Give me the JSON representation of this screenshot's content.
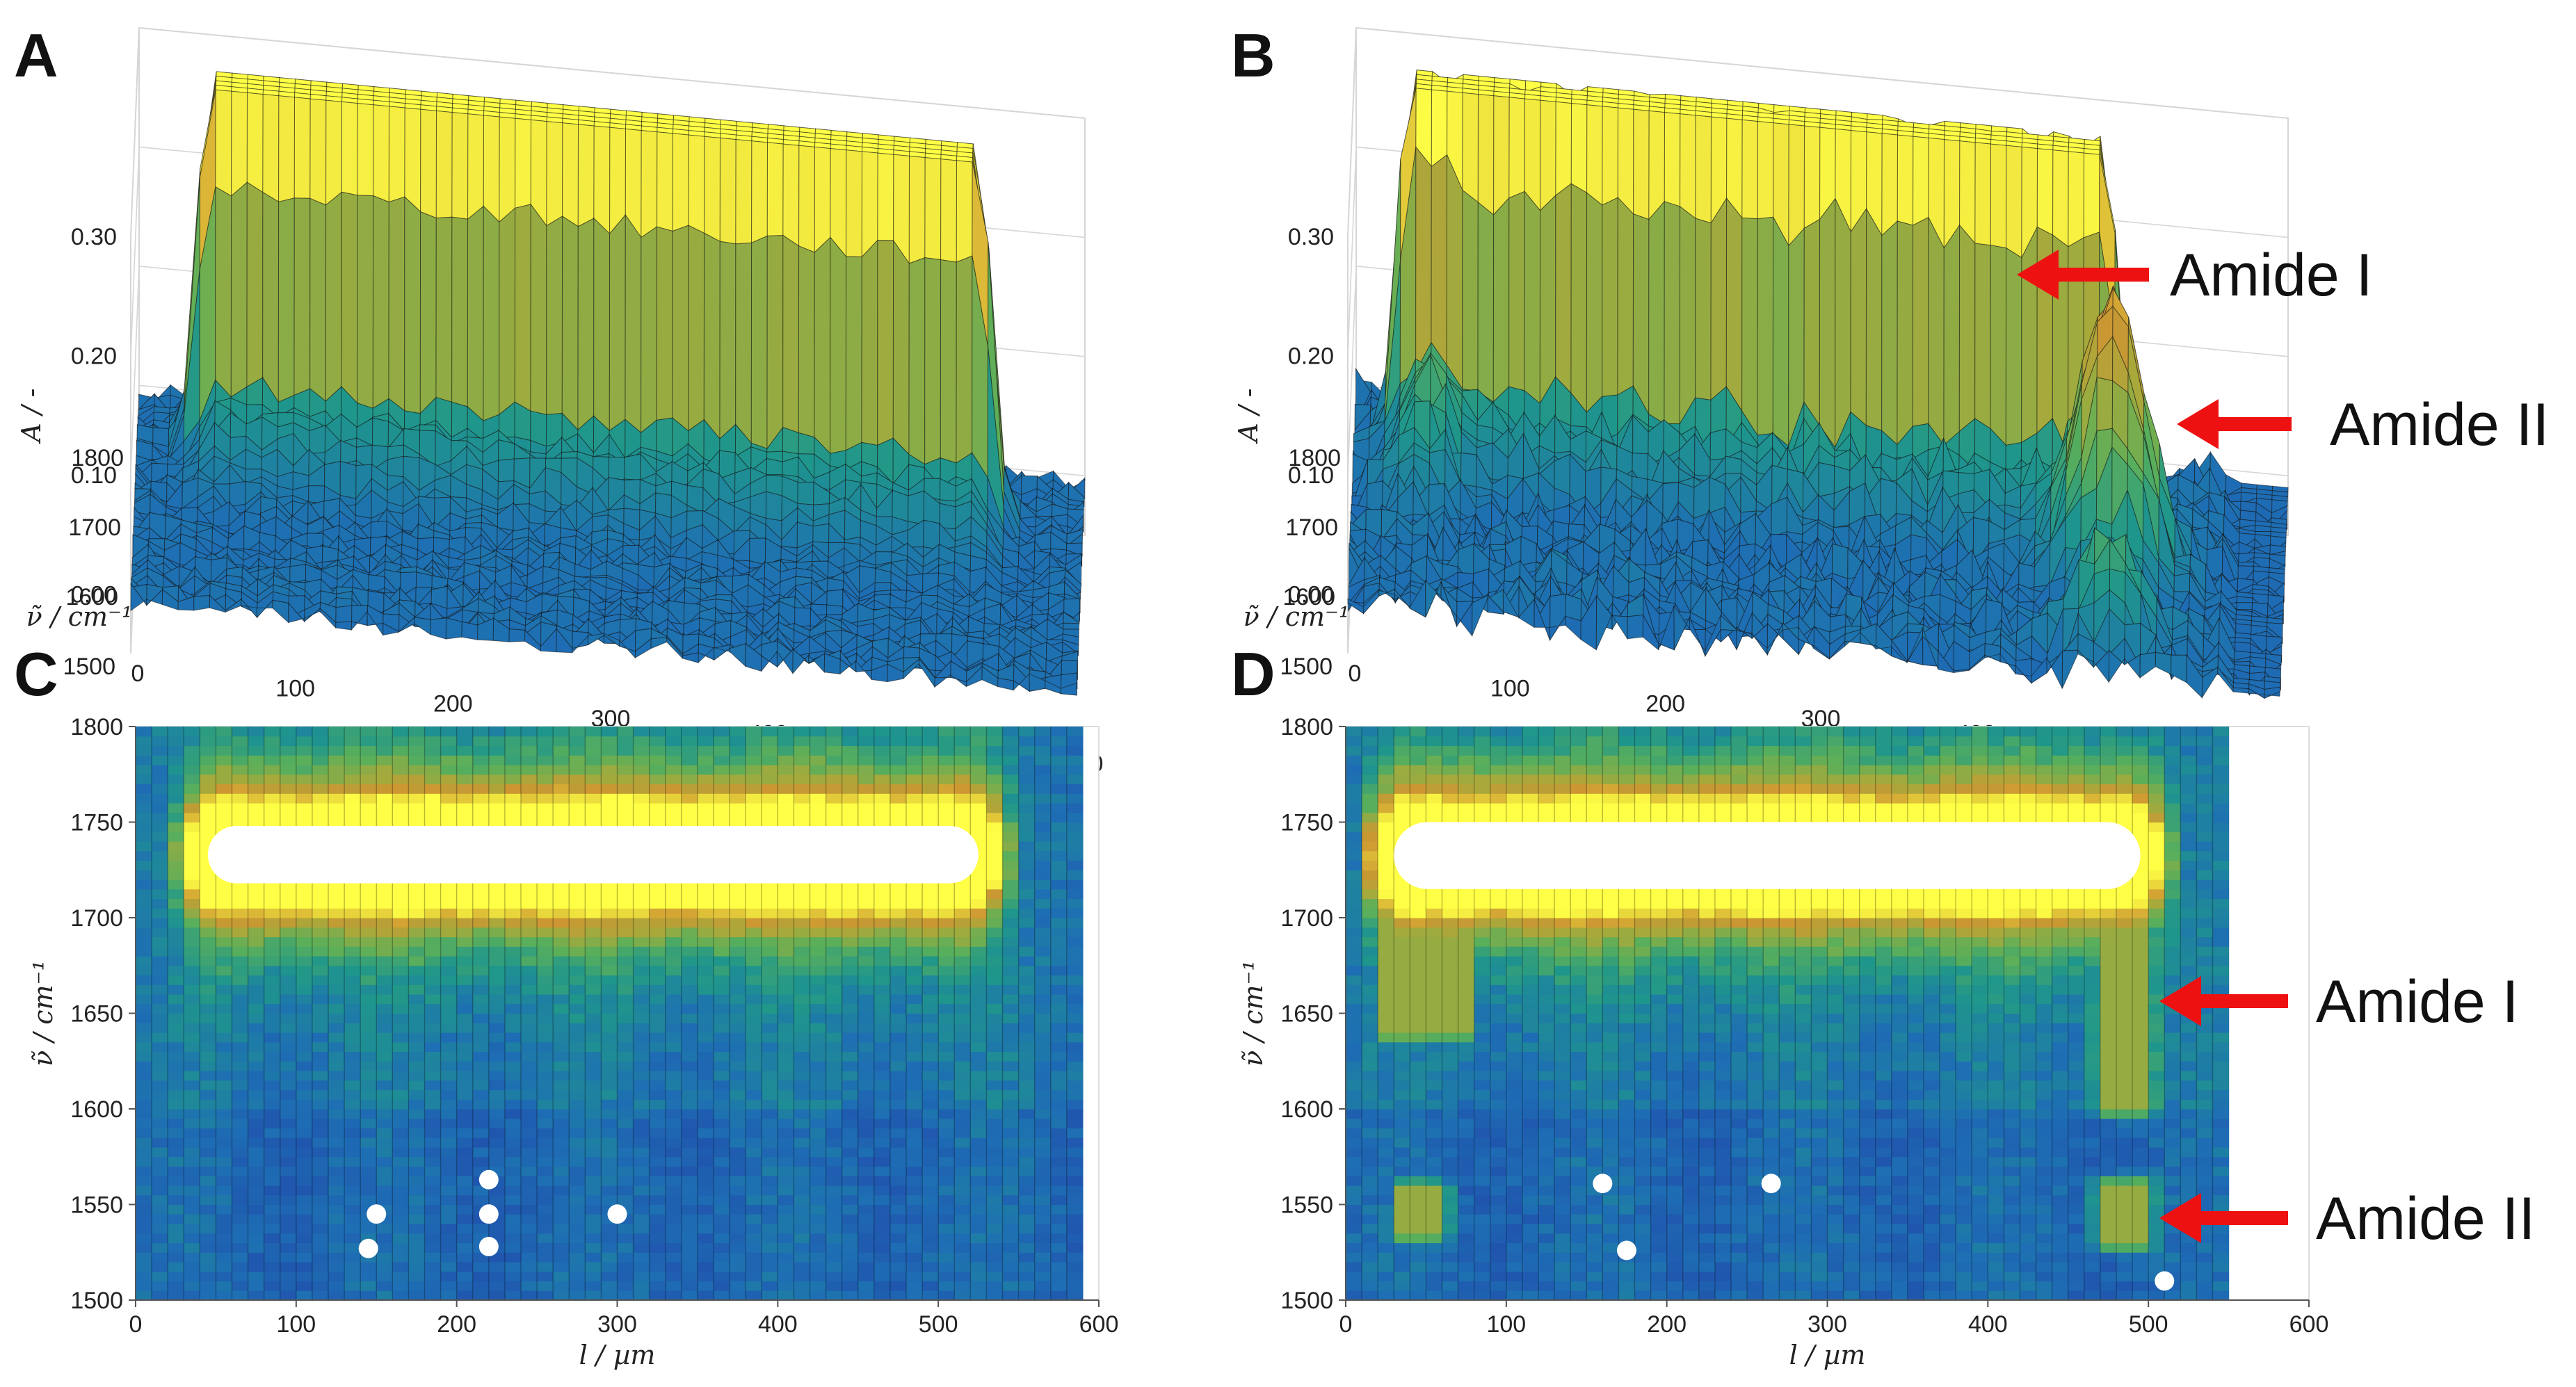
{
  "colors": {
    "low": "#2a5fb0",
    "mid": "#1f9a8a",
    "midhigh": "#7fbf3f",
    "high": "#d8b43a",
    "peak": "#ffff3a",
    "arrow": "#ee1111",
    "grid": "#d6d6d6"
  },
  "chart_data": [
    {
      "panel": "A",
      "type": "surface3d",
      "xlabel": "l / µm",
      "ylabel": "ν̃ / cm⁻¹",
      "zlabel": "A / -",
      "xlim": [
        0,
        600
      ],
      "ylim": [
        1500,
        1800
      ],
      "zlim": [
        -0.05,
        0.3
      ],
      "x_ticks": [
        "0",
        "100",
        "200",
        "300",
        "400",
        "500",
        "600"
      ],
      "y_ticks": [
        "1500",
        "1600",
        "1700",
        "1800"
      ],
      "z_ticks": [
        "0.00",
        "0.10",
        "0.20",
        "0.30"
      ],
      "ester_band_cm1": [
        1720,
        1750
      ],
      "ester_band_l_um": [
        40,
        540
      ],
      "max_absorbance": 0.3,
      "annotations": []
    },
    {
      "panel": "B",
      "type": "surface3d",
      "xlabel": "l / µm",
      "ylabel": "ν̃ / cm⁻¹",
      "zlabel": "A / -",
      "xlim": [
        0,
        600
      ],
      "ylim": [
        1500,
        1800
      ],
      "zlim": [
        -0.05,
        0.3
      ],
      "x_ticks": [
        "0",
        "100",
        "200",
        "300",
        "400",
        "500",
        "600"
      ],
      "y_ticks": [
        "1500",
        "1600",
        "1700",
        "1800"
      ],
      "z_ticks": [
        "0.00",
        "0.10",
        "0.20",
        "0.30"
      ],
      "ester_band_cm1": [
        1720,
        1750
      ],
      "ester_band_l_um": [
        30,
        490
      ],
      "amide_I_peak": {
        "l_um": 490,
        "wavenumber": 1650,
        "absorbance": 0.22
      },
      "amide_II_peak": {
        "l_um": 490,
        "wavenumber": 1545,
        "absorbance": 0.05
      },
      "annotations": [
        "Amide I",
        "Amide II"
      ]
    },
    {
      "panel": "C",
      "type": "heatmap",
      "xlabel": "l / µm",
      "ylabel": "ν̃ / cm⁻¹",
      "xlim": [
        0,
        600
      ],
      "ylim": [
        1500,
        1800
      ],
      "data_x_extent": [
        0,
        590
      ],
      "x_ticks": [
        "0",
        "100",
        "200",
        "300",
        "400",
        "500",
        "600"
      ],
      "y_ticks": [
        "1500",
        "1550",
        "1600",
        "1650",
        "1700",
        "1750",
        "1800"
      ],
      "saturated_band": {
        "l_from": 45,
        "l_to": 525,
        "wn_from": 1718,
        "wn_to": 1748
      },
      "features": [],
      "white_spots": [
        {
          "l": 145,
          "wn": 1527
        },
        {
          "l": 150,
          "wn": 1545
        },
        {
          "l": 220,
          "wn": 1528
        },
        {
          "l": 220,
          "wn": 1545
        },
        {
          "l": 220,
          "wn": 1563
        },
        {
          "l": 300,
          "wn": 1545
        }
      ],
      "annotations": []
    },
    {
      "panel": "D",
      "type": "heatmap",
      "xlabel": "l / µm",
      "ylabel": "ν̃ / cm⁻¹",
      "xlim": [
        0,
        600
      ],
      "ylim": [
        1500,
        1800
      ],
      "data_x_extent": [
        0,
        550
      ],
      "x_ticks": [
        "0",
        "100",
        "200",
        "300",
        "400",
        "500",
        "600"
      ],
      "y_ticks": [
        "1500",
        "1550",
        "1600",
        "1650",
        "1700",
        "1750",
        "1800"
      ],
      "saturated_band": {
        "l_from": 30,
        "l_to": 495,
        "wn_from": 1715,
        "wn_to": 1750
      },
      "features": [
        {
          "l_from": 25,
          "l_to": 75,
          "wn_from": 1640,
          "wn_to": 1700
        },
        {
          "l_from": 470,
          "l_to": 500,
          "wn_from": 1600,
          "wn_to": 1710
        },
        {
          "l_from": 470,
          "l_to": 500,
          "wn_from": 1530,
          "wn_to": 1560
        },
        {
          "l_from": 35,
          "l_to": 60,
          "wn_from": 1535,
          "wn_to": 1558
        }
      ],
      "white_spots": [
        {
          "l": 175,
          "wn": 1526
        },
        {
          "l": 160,
          "wn": 1561
        },
        {
          "l": 265,
          "wn": 1561
        },
        {
          "l": 510,
          "wn": 1510
        }
      ],
      "annotations": [
        "Amide I",
        "Amide II"
      ]
    }
  ]
}
